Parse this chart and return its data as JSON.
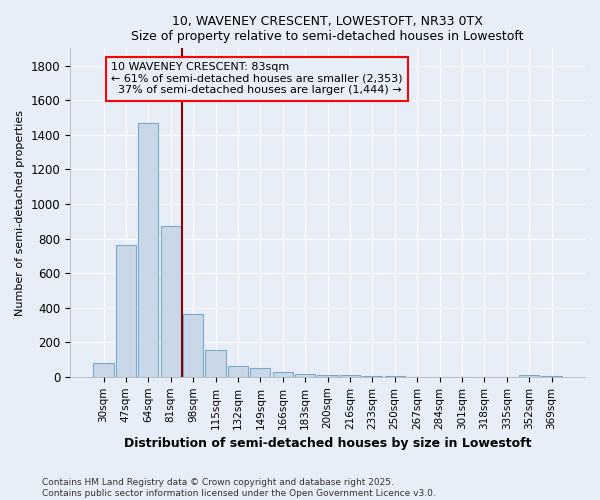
{
  "title1": "10, WAVENEY CRESCENT, LOWESTOFT, NR33 0TX",
  "title2": "Size of property relative to semi-detached houses in Lowestoft",
  "xlabel": "Distribution of semi-detached houses by size in Lowestoft",
  "ylabel": "Number of semi-detached properties",
  "categories": [
    "30sqm",
    "47sqm",
    "64sqm",
    "81sqm",
    "98sqm",
    "115sqm",
    "132sqm",
    "149sqm",
    "166sqm",
    "183sqm",
    "200sqm",
    "216sqm",
    "233sqm",
    "250sqm",
    "267sqm",
    "284sqm",
    "301sqm",
    "318sqm",
    "335sqm",
    "352sqm",
    "369sqm"
  ],
  "values": [
    80,
    760,
    1470,
    870,
    365,
    155,
    65,
    50,
    30,
    15,
    10,
    8,
    3,
    2,
    1,
    0,
    1,
    0,
    0,
    10,
    5
  ],
  "bar_color": "#c8d8e8",
  "bar_edgecolor": "#7aaac8",
  "background_color": "#e8eef8",
  "grid_color": "#ffffff",
  "red_line_x": 3.5,
  "annotation_line1": "10 WAVENEY CRESCENT: 83sqm",
  "annotation_line2": "← 61% of semi-detached houses are smaller (2,353)",
  "annotation_line3": "  37% of semi-detached houses are larger (1,444) →",
  "footnote": "Contains HM Land Registry data © Crown copyright and database right 2025.\nContains public sector information licensed under the Open Government Licence v3.0.",
  "ylim": [
    0,
    1900
  ],
  "yticks": [
    0,
    200,
    400,
    600,
    800,
    1000,
    1200,
    1400,
    1600,
    1800
  ]
}
